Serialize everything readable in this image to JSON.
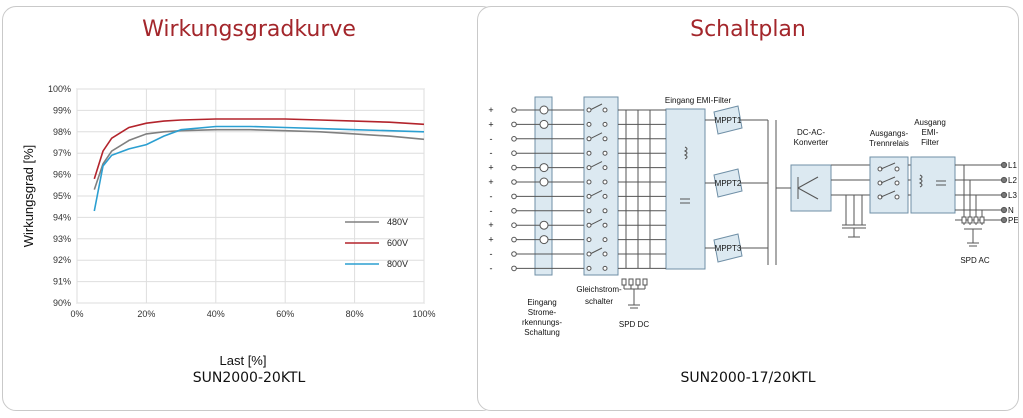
{
  "efficiency_panel": {
    "title": "Wirkungsgradkurve",
    "model": "SUN2000-20KTL"
  },
  "schematic_panel": {
    "title": "Schaltplan",
    "model": "SUN2000-17/20KTL",
    "labels": {
      "emi_in": "Eingang EMI-Filter",
      "mppt1": "MPPT1",
      "mppt2": "MPPT2",
      "mppt3": "MPPT3",
      "dcac": [
        "DC-AC-",
        "Konverter"
      ],
      "relay": [
        "Ausgangs-",
        "Trennrelais"
      ],
      "emi_out": [
        "Ausgang",
        "EMI-",
        "Filter"
      ],
      "current_detect": [
        "Eingang",
        "Strome-",
        "rkennungs-",
        "Schaltung"
      ],
      "dc_switch": [
        "Gleichstrom-",
        "schalter"
      ],
      "spd_dc": "SPD DC",
      "spd_ac": "SPD AC",
      "outputs": [
        "L1",
        "L2",
        "L3",
        "N",
        "PE"
      ],
      "polarity": [
        "+",
        "+",
        "-",
        "-",
        "+",
        "+",
        "-",
        "-",
        "+",
        "+",
        "-",
        "-"
      ]
    }
  },
  "chart_data": {
    "type": "line",
    "xlabel": "Last [%]",
    "ylabel": "Wirkungsgrad [%]",
    "xlim": [
      0,
      100
    ],
    "ylim": [
      90,
      100
    ],
    "x_ticks": [
      "0%",
      "20%",
      "40%",
      "60%",
      "80%",
      "100%"
    ],
    "y_ticks": [
      "90%",
      "91%",
      "92%",
      "93%",
      "94%",
      "95%",
      "96%",
      "97%",
      "98%",
      "99%",
      "100%"
    ],
    "grid": true,
    "legend_position": "bottom-right",
    "series": [
      {
        "name": "480V",
        "color": "#808080",
        "x": [
          5,
          7.5,
          10,
          15,
          20,
          25,
          30,
          40,
          50,
          60,
          70,
          80,
          90,
          100
        ],
        "y": [
          95.3,
          96.5,
          97.1,
          97.6,
          97.9,
          98.0,
          98.05,
          98.1,
          98.1,
          98.05,
          98.0,
          97.9,
          97.8,
          97.65
        ]
      },
      {
        "name": "600V",
        "color": "#b3242c",
        "x": [
          5,
          7.5,
          10,
          15,
          20,
          25,
          30,
          40,
          50,
          60,
          70,
          80,
          90,
          100
        ],
        "y": [
          95.8,
          97.1,
          97.7,
          98.2,
          98.4,
          98.5,
          98.55,
          98.6,
          98.6,
          98.6,
          98.55,
          98.5,
          98.45,
          98.35
        ]
      },
      {
        "name": "800V",
        "color": "#2b9fd1",
        "x": [
          5,
          7.5,
          10,
          15,
          20,
          25,
          30,
          40,
          50,
          60,
          70,
          80,
          90,
          100
        ],
        "y": [
          94.3,
          96.4,
          96.9,
          97.2,
          97.4,
          97.8,
          98.1,
          98.25,
          98.25,
          98.2,
          98.15,
          98.1,
          98.05,
          98.0
        ]
      }
    ]
  }
}
